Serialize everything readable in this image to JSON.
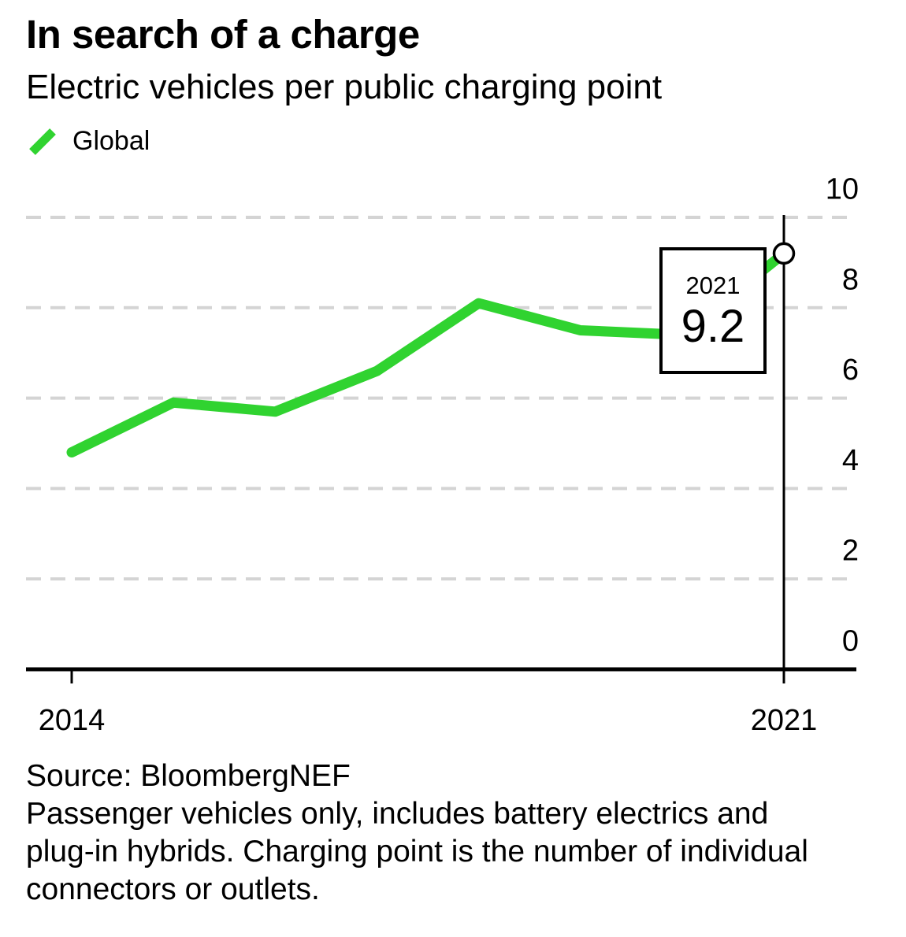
{
  "header": {
    "title": "In search of a charge",
    "subtitle": "Electric vehicles per public charging point",
    "legend": [
      {
        "label": "Global",
        "color": "#30d330"
      }
    ]
  },
  "chart_data": {
    "type": "line",
    "title": "In search of a charge",
    "subtitle": "Electric vehicles per public charging point",
    "series": [
      {
        "name": "Global",
        "color": "#30d330",
        "x": [
          2014,
          2015,
          2016,
          2017,
          2018,
          2019,
          2020,
          2021
        ],
        "values": [
          4.8,
          5.9,
          5.7,
          6.6,
          8.1,
          7.5,
          7.4,
          9.2
        ]
      }
    ],
    "xlabel": "",
    "ylabel": "",
    "ylim": [
      0,
      10
    ],
    "y_ticks": [
      0,
      2,
      4,
      6,
      8,
      10
    ],
    "y_axis_position": "right",
    "x_ticks": [
      {
        "year": 2014,
        "label": "2014"
      },
      {
        "year": 2021,
        "label": "2021"
      }
    ],
    "grid": "horizontal-dashed",
    "grid_color": "#d4d4d4",
    "annotation": {
      "year": "2021",
      "value": "9.2",
      "marker": "open-circle-on-last-point",
      "vertical_rule_year": 2021
    }
  },
  "footer": {
    "source": "Source: BloombergNEF",
    "note_lines": [
      "Passenger vehicles only, includes battery electrics and",
      "plug-in hybrids. Charging point is the number of individual",
      "connectors or outlets."
    ]
  }
}
